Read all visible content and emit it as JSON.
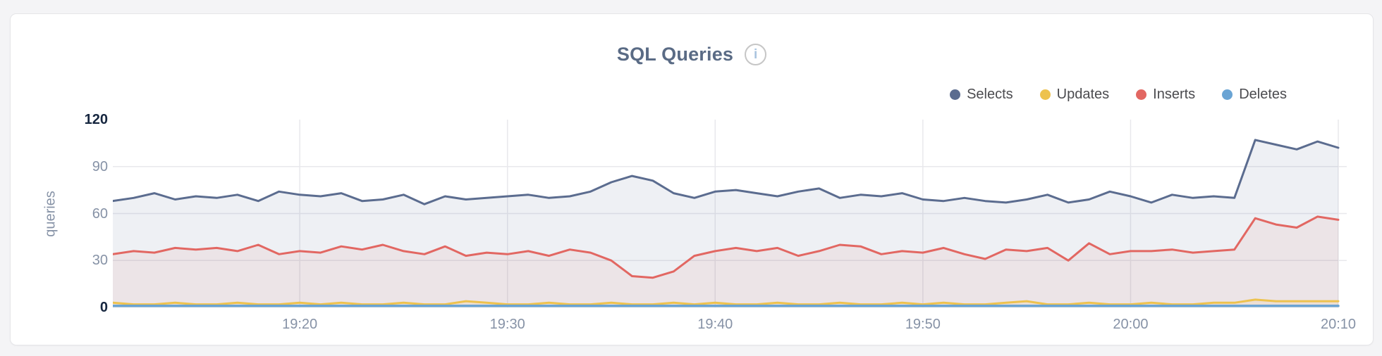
{
  "header": {
    "title": "SQL Queries",
    "info_glyph": "i"
  },
  "legend": {
    "position": "top-right",
    "items": [
      {
        "label": "Selects",
        "color": "#5b6c8f"
      },
      {
        "label": "Updates",
        "color": "#edc24e"
      },
      {
        "label": "Inserts",
        "color": "#e26762"
      },
      {
        "label": "Deletes",
        "color": "#6aa4d4"
      }
    ]
  },
  "chart_data": {
    "type": "area",
    "title": "SQL Queries",
    "ylabel": "queries",
    "xlabel": "",
    "ylim": [
      0,
      120
    ],
    "grid": true,
    "points_per_series": 60,
    "x_axis": {
      "tick_labels": [
        "19:20",
        "19:30",
        "19:40",
        "19:50",
        "20:00",
        "20:10"
      ],
      "tick_indices": [
        9,
        19,
        29,
        39,
        49,
        59
      ]
    },
    "y_axis": {
      "tick_values": [
        0,
        30,
        60,
        90,
        120
      ],
      "tick_labels": [
        "0",
        "30",
        "60",
        "90",
        "120"
      ],
      "emphasized_tick_labels": [
        "0",
        "120"
      ],
      "gridline_values": [
        30,
        60,
        90
      ]
    },
    "series": [
      {
        "name": "Selects",
        "color": "#5b6c8f",
        "fill_opacity": 0.1,
        "stroke_width": 3,
        "values": [
          68,
          70,
          73,
          69,
          71,
          70,
          72,
          68,
          74,
          72,
          71,
          73,
          68,
          69,
          72,
          66,
          71,
          69,
          70,
          71,
          72,
          70,
          71,
          74,
          80,
          84,
          81,
          73,
          70,
          74,
          75,
          73,
          71,
          74,
          76,
          70,
          72,
          71,
          73,
          69,
          68,
          70,
          68,
          67,
          69,
          72,
          67,
          69,
          74,
          71,
          67,
          72,
          70,
          71,
          70,
          107,
          104,
          101,
          106,
          102
        ]
      },
      {
        "name": "Updates",
        "color": "#edc24e",
        "fill_opacity": 0.12,
        "stroke_width": 3,
        "values": [
          3,
          2,
          2,
          3,
          2,
          2,
          3,
          2,
          2,
          3,
          2,
          3,
          2,
          2,
          3,
          2,
          2,
          4,
          3,
          2,
          2,
          3,
          2,
          2,
          3,
          2,
          2,
          3,
          2,
          3,
          2,
          2,
          3,
          2,
          2,
          3,
          2,
          2,
          3,
          2,
          3,
          2,
          2,
          3,
          4,
          2,
          2,
          3,
          2,
          2,
          3,
          2,
          2,
          3,
          3,
          5,
          4,
          4,
          4,
          4
        ]
      },
      {
        "name": "Inserts",
        "color": "#e26762",
        "fill_opacity": 0.085,
        "stroke_width": 3,
        "values": [
          34,
          36,
          35,
          38,
          37,
          38,
          36,
          40,
          34,
          36,
          35,
          39,
          37,
          40,
          36,
          34,
          39,
          33,
          35,
          34,
          36,
          33,
          37,
          35,
          30,
          20,
          19,
          23,
          33,
          36,
          38,
          36,
          38,
          33,
          36,
          40,
          39,
          34,
          36,
          35,
          38,
          34,
          31,
          37,
          36,
          38,
          30,
          41,
          34,
          36,
          36,
          37,
          35,
          36,
          37,
          57,
          53,
          51,
          58,
          56
        ]
      },
      {
        "name": "Deletes",
        "color": "#6aa4d4",
        "fill_opacity": 0,
        "stroke_width": 3.5,
        "values": [
          1,
          1,
          1,
          1,
          1,
          1,
          1,
          1,
          1,
          1,
          1,
          1,
          1,
          1,
          1,
          1,
          1,
          1,
          1,
          1,
          1,
          1,
          1,
          1,
          1,
          1,
          1,
          1,
          1,
          1,
          1,
          1,
          1,
          1,
          1,
          1,
          1,
          1,
          1,
          1,
          1,
          1,
          1,
          1,
          1,
          1,
          1,
          1,
          1,
          1,
          1,
          1,
          1,
          1,
          1,
          1,
          1,
          1,
          1,
          1
        ]
      }
    ]
  },
  "colors": {
    "page_background": "#f4f4f6",
    "card_background": "#ffffff",
    "card_border": "#e5e5e8",
    "gridline": "#e8e8ec",
    "title_text": "#5a6b85",
    "axis_label": "#8692a6",
    "axis_emphasis": "#16263f",
    "legend_text": "#4b4b4f",
    "info_icon_border": "#c6c6c6",
    "info_icon_glyph": "#a9c4df"
  }
}
